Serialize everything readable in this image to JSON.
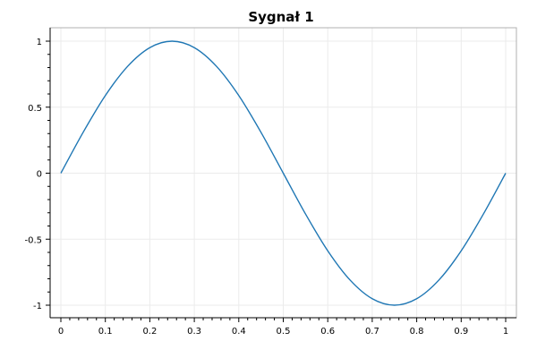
{
  "chart_data": {
    "type": "line",
    "title": "Sygnał 1",
    "xlabel": "",
    "ylabel": "",
    "xlim": [
      0,
      1
    ],
    "ylim": [
      -1,
      1
    ],
    "grid": true,
    "x_ticks": [
      "0",
      "0.1",
      "0.2",
      "0.3",
      "0.4",
      "0.5",
      "0.6",
      "0.7",
      "0.8",
      "0.9",
      "1"
    ],
    "y_ticks": [
      "1",
      "0.5",
      "0",
      "-0.5",
      "-1"
    ],
    "series": [
      {
        "color": "#1f77b4",
        "x": [
          0,
          0.05,
          0.1,
          0.15,
          0.2,
          0.25,
          0.3,
          0.35,
          0.4,
          0.45,
          0.5,
          0.55,
          0.6,
          0.65,
          0.7,
          0.75,
          0.8,
          0.85,
          0.9,
          0.95,
          1
        ],
        "y": [
          0,
          0.309,
          0.588,
          0.809,
          0.951,
          1,
          0.951,
          0.809,
          0.588,
          0.309,
          0,
          -0.309,
          -0.588,
          -0.809,
          -0.951,
          -1,
          -0.951,
          -0.809,
          -0.588,
          -0.309,
          0
        ]
      }
    ]
  }
}
